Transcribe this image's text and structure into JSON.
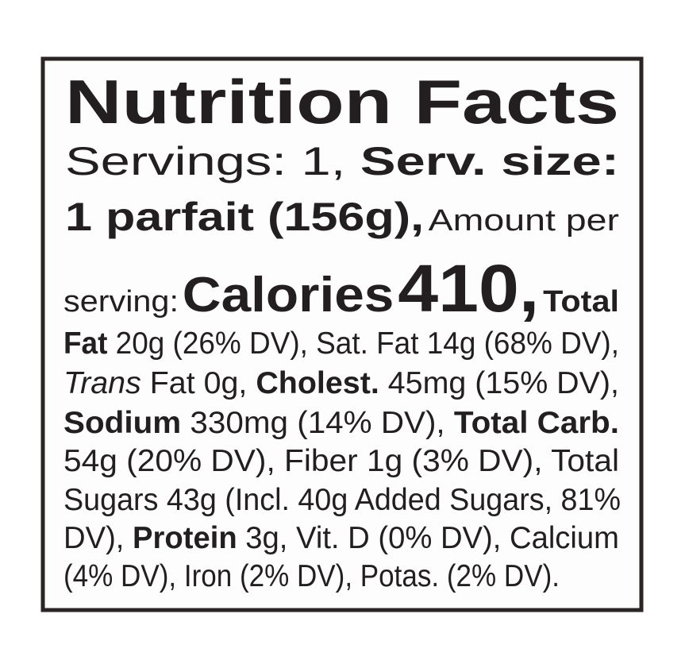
{
  "title": "Nutrition Facts",
  "lines": [
    [
      "Servings: 1,",
      "Serv. size:"
    ],
    [
      "1 parfait (156g),",
      "Amount per"
    ],
    [
      "serving:",
      "Calories",
      "410,",
      "Total"
    ],
    [
      "Fat",
      "20g (26% DV), Sat. Fat 14g (68% DV),"
    ],
    [
      "Trans",
      "Fat 0g,",
      "Cholest.",
      "45mg (15% DV),"
    ],
    [
      "Sodium",
      "330mg (14% DV),",
      "Total Carb."
    ],
    [
      "54g (20% DV), Fiber 1g (3% DV), Total"
    ],
    [
      "Sugars 43g (Incl. 40g Added Sugars, 81%"
    ],
    [
      "DV),",
      "Protein",
      "3g, Vit. D (0% DV), Calcium"
    ],
    [
      "(4% DV), Iron (2% DV), Potas. (2% DV)."
    ]
  ]
}
